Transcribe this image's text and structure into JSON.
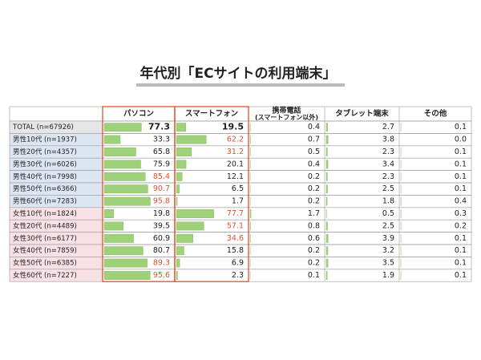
{
  "title": "年代別「ECサイトの利用端末」",
  "table": {
    "columns": [
      {
        "label": "パソコン"
      },
      {
        "label": "スマートフォン"
      },
      {
        "label": "携帯電話",
        "note": "(スマートフォン以外)"
      },
      {
        "label": "タブレット端末"
      },
      {
        "label": "その他"
      }
    ],
    "bar_color": "#9fd07a",
    "highlight_color": "#e2502a",
    "outline_columns": [
      0,
      1
    ],
    "rows": [
      {
        "label": "TOTAL (n=67926)",
        "group": "total",
        "bold": [
          0,
          1
        ],
        "values": [
          "77.3",
          "19.5",
          "0.4",
          "2.7",
          "0.1"
        ]
      },
      {
        "label": "男性10代 (n=1937)",
        "group": "male",
        "highlight": [
          1
        ],
        "values": [
          "33.3",
          "62.2",
          "0.7",
          "3.8",
          "0.0"
        ]
      },
      {
        "label": "男性20代 (n=4357)",
        "group": "male",
        "highlight": [
          1
        ],
        "values": [
          "65.8",
          "31.2",
          "0.5",
          "2.3",
          "0.1"
        ]
      },
      {
        "label": "男性30代 (n=6026)",
        "group": "male",
        "values": [
          "75.9",
          "20.1",
          "0.4",
          "3.4",
          "0.1"
        ]
      },
      {
        "label": "男性40代 (n=7998)",
        "group": "male",
        "highlight": [
          0
        ],
        "values": [
          "85.4",
          "12.1",
          "0.2",
          "2.3",
          "0.1"
        ]
      },
      {
        "label": "男性50代 (n=6366)",
        "group": "male",
        "highlight": [
          0
        ],
        "values": [
          "90.7",
          "6.5",
          "0.2",
          "2.5",
          "0.1"
        ]
      },
      {
        "label": "男性60代 (n=7283)",
        "group": "male",
        "highlight": [
          0
        ],
        "values": [
          "95.8",
          "1.7",
          "0.2",
          "1.8",
          "0.4"
        ]
      },
      {
        "label": "女性10代 (n=1824)",
        "group": "female",
        "highlight": [
          1
        ],
        "values": [
          "19.8",
          "77.7",
          "1.7",
          "0.5",
          "0.3"
        ]
      },
      {
        "label": "女性20代 (n=4489)",
        "group": "female",
        "highlight": [
          1
        ],
        "values": [
          "39.5",
          "57.1",
          "0.8",
          "2.5",
          "0.2"
        ]
      },
      {
        "label": "女性30代 (n=6177)",
        "group": "female",
        "highlight": [
          1
        ],
        "values": [
          "60.9",
          "34.6",
          "0.6",
          "3.9",
          "0.1"
        ]
      },
      {
        "label": "女性40代 (n=7859)",
        "group": "female",
        "values": [
          "80.7",
          "15.8",
          "0.2",
          "3.2",
          "0.1"
        ]
      },
      {
        "label": "女性50代 (n=6385)",
        "group": "female",
        "highlight": [
          0
        ],
        "values": [
          "89.3",
          "6.9",
          "0.2",
          "3.5",
          "0.1"
        ]
      },
      {
        "label": "女性60代 (n=7227)",
        "group": "female",
        "highlight": [
          0
        ],
        "values": [
          "95.6",
          "2.3",
          "0.1",
          "1.9",
          "0.1"
        ]
      }
    ]
  }
}
